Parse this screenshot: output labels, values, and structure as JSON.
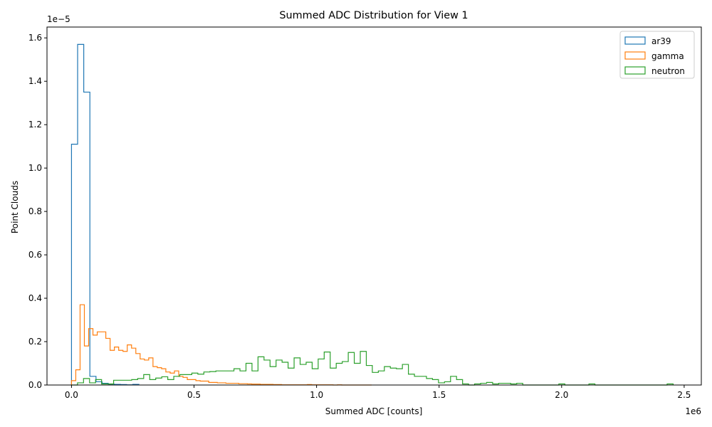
{
  "chart_data": {
    "type": "histogram",
    "title": "Summed ADC Distribution for View 1",
    "xlabel": "Summed ADC [counts]",
    "ylabel": "Point Clouds",
    "x_offset_label": "1e6",
    "y_offset_label": "1e−5",
    "x_scale": 1000000,
    "y_scale": 1e-05,
    "xlim": [
      -0.1,
      2.57
    ],
    "ylim": [
      0,
      1.65
    ],
    "x_ticks": [
      0.0,
      0.5,
      1.0,
      1.5,
      2.0,
      2.5
    ],
    "x_tick_labels": [
      "0.0",
      "0.5",
      "1.0",
      "1.5",
      "2.0",
      "2.5"
    ],
    "y_ticks": [
      0.0,
      0.2,
      0.4,
      0.6,
      0.8,
      1.0,
      1.2,
      1.4,
      1.6
    ],
    "y_tick_labels": [
      "0.0",
      "0.2",
      "0.4",
      "0.6",
      "0.8",
      "1.0",
      "1.2",
      "1.4",
      "1.6"
    ],
    "legend_position": "top-right",
    "grid": false,
    "series": [
      {
        "name": "ar39",
        "color": "#1f77b4",
        "x_start": 0.0,
        "bin_width": 0.025,
        "values": [
          1.11,
          1.57,
          1.35,
          0.04,
          0.015,
          0.008,
          0.004,
          0.003,
          0.002,
          0.001,
          0.003
        ]
      },
      {
        "name": "gamma",
        "color": "#ff7f0e",
        "x_start": 0.0,
        "bin_width": 0.0175,
        "values": [
          0.02,
          0.07,
          0.37,
          0.18,
          0.26,
          0.23,
          0.245,
          0.245,
          0.215,
          0.16,
          0.175,
          0.16,
          0.155,
          0.185,
          0.17,
          0.145,
          0.12,
          0.115,
          0.125,
          0.085,
          0.08,
          0.075,
          0.06,
          0.055,
          0.065,
          0.04,
          0.035,
          0.025,
          0.025,
          0.02,
          0.018,
          0.018,
          0.012,
          0.012,
          0.01,
          0.01,
          0.008,
          0.008,
          0.008,
          0.006,
          0.006,
          0.005,
          0.004,
          0.004,
          0.003,
          0.003,
          0.003,
          0.002,
          0.002,
          0.001,
          0.001,
          0.001,
          0.001,
          0.001,
          0.001,
          0.002,
          0.001,
          0.001,
          0.001,
          0.001,
          0.001,
          0.0,
          0.001,
          0.0,
          0.0,
          0.0,
          0.0,
          0.0,
          0.0,
          0.0
        ]
      },
      {
        "name": "neutron",
        "color": "#2ca02c",
        "x_start": 0.0,
        "bin_width": 0.02455,
        "values": [
          0.0,
          0.01,
          0.03,
          0.01,
          0.025,
          0.005,
          0.005,
          0.022,
          0.022,
          0.022,
          0.025,
          0.03,
          0.048,
          0.025,
          0.032,
          0.038,
          0.025,
          0.04,
          0.048,
          0.048,
          0.055,
          0.05,
          0.06,
          0.062,
          0.065,
          0.065,
          0.065,
          0.075,
          0.065,
          0.1,
          0.065,
          0.13,
          0.115,
          0.085,
          0.115,
          0.105,
          0.078,
          0.125,
          0.095,
          0.105,
          0.075,
          0.12,
          0.152,
          0.078,
          0.1,
          0.108,
          0.15,
          0.1,
          0.155,
          0.09,
          0.058,
          0.065,
          0.085,
          0.078,
          0.075,
          0.095,
          0.05,
          0.04,
          0.04,
          0.03,
          0.025,
          0.01,
          0.015,
          0.04,
          0.025,
          0.005,
          0.0,
          0.005,
          0.008,
          0.012,
          0.005,
          0.008,
          0.008,
          0.005,
          0.008,
          0.0,
          0.0,
          0.0,
          0.0,
          0.0,
          0.0,
          0.005,
          0.0,
          0.0,
          0.0,
          0.0,
          0.005,
          0.0,
          0.0,
          0.0,
          0.0,
          0.0,
          0.0,
          0.0,
          0.0,
          0.0,
          0.0,
          0.0,
          0.0,
          0.005
        ]
      }
    ]
  }
}
